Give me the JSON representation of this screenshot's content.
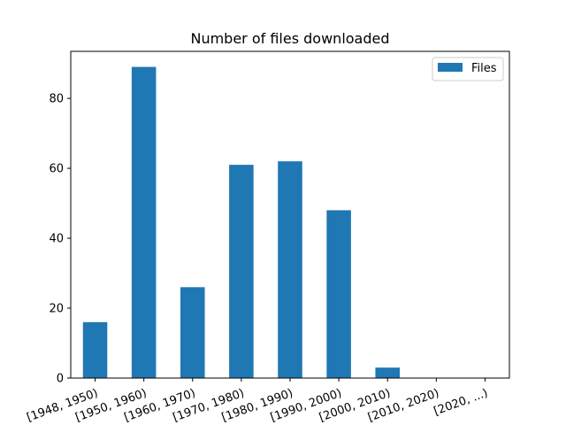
{
  "chart_data": {
    "type": "bar",
    "title": "Number of files downloaded",
    "xlabel": "",
    "ylabel": "",
    "categories": [
      "[1948, 1950)",
      "[1950, 1960)",
      "[1960, 1970)",
      "[1970, 1980)",
      "[1980, 1990)",
      "[1990, 2000)",
      "[2000, 2010)",
      "[2010, 2020)",
      "[2020, ...)"
    ],
    "series": [
      {
        "name": "Files",
        "values": [
          16,
          89,
          26,
          61,
          62,
          48,
          3,
          0,
          0
        ],
        "color": "#1f77b4"
      }
    ],
    "ylim": [
      0,
      93.45
    ],
    "yticks": [
      0,
      20,
      40,
      60,
      80
    ],
    "grid": false,
    "legend": "top-right"
  }
}
